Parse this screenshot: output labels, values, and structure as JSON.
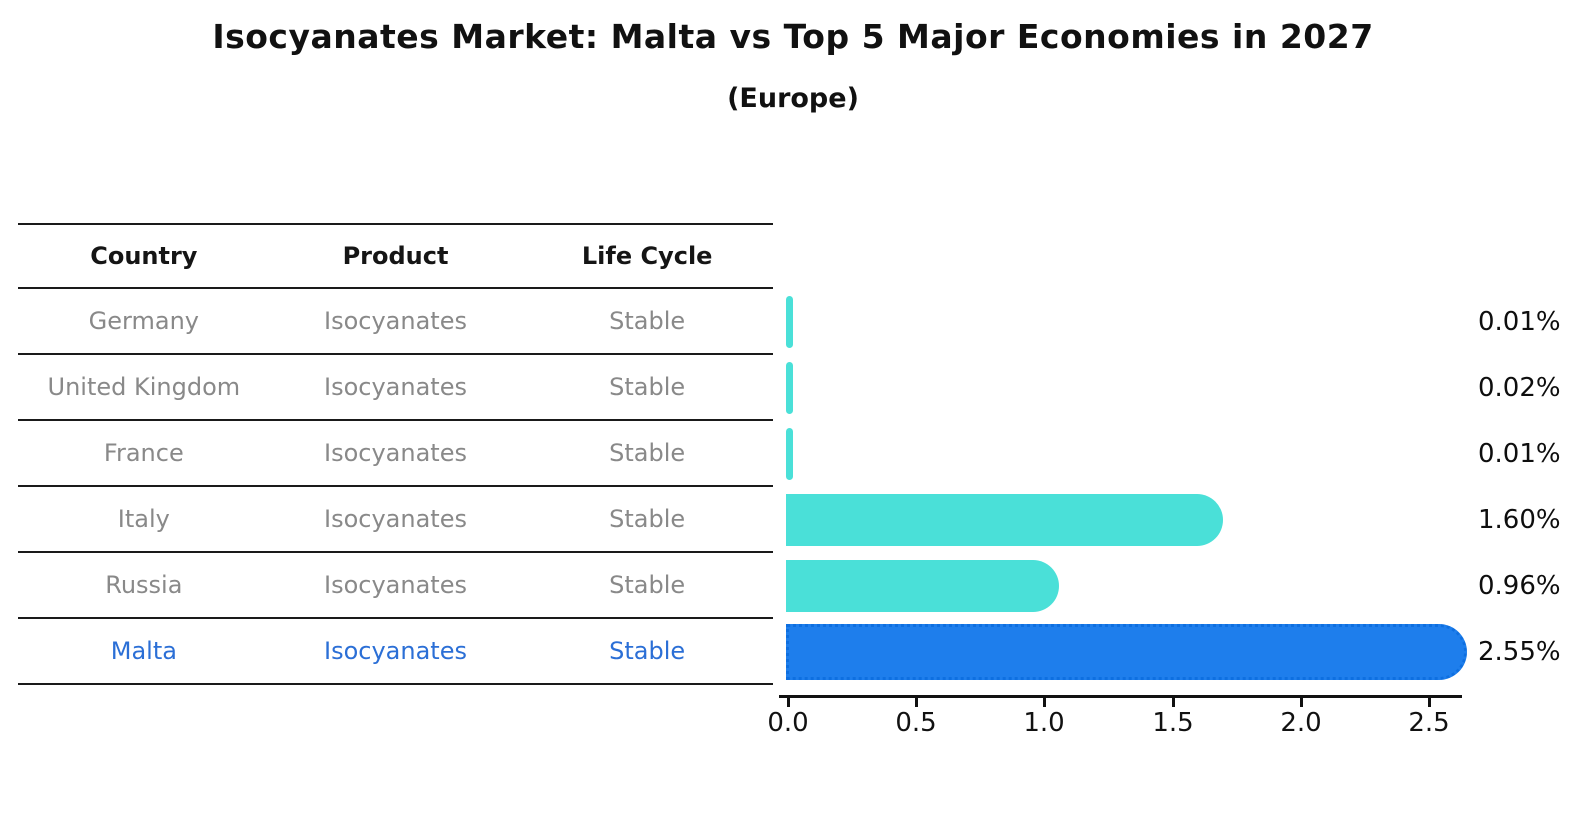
{
  "header": {
    "title": "Isocyanates Market: Malta vs Top 5 Major Economies in 2027",
    "subtitle": "(Europe)"
  },
  "table": {
    "columns": [
      "Country",
      "Product",
      "Life Cycle"
    ],
    "rows": [
      {
        "country": "Germany",
        "product": "Isocyanates",
        "life_cycle": "Stable"
      },
      {
        "country": "United Kingdom",
        "product": "Isocyanates",
        "life_cycle": "Stable"
      },
      {
        "country": "France",
        "product": "Isocyanates",
        "life_cycle": "Stable"
      },
      {
        "country": "Italy",
        "product": "Isocyanates",
        "life_cycle": "Stable"
      },
      {
        "country": "Russia",
        "product": "Isocyanates",
        "life_cycle": "Stable"
      },
      {
        "country": "Malta",
        "product": "Isocyanates",
        "life_cycle": "Stable"
      }
    ]
  },
  "chart_data": {
    "type": "bar",
    "orientation": "horizontal",
    "title": "Isocyanates Market: Malta vs Top 5 Major Economies in 2027",
    "subtitle": "(Europe)",
    "categories": [
      "Germany",
      "United Kingdom",
      "France",
      "Italy",
      "Russia",
      "Malta"
    ],
    "values": [
      0.01,
      0.02,
      0.01,
      1.6,
      0.96,
      2.55
    ],
    "labels": [
      "0.01%",
      "0.02%",
      "0.01%",
      "1.60%",
      "0.96%",
      "2.55%"
    ],
    "x_ticks": [
      "0.0",
      "0.5",
      "1.0",
      "1.5",
      "2.0",
      "2.5"
    ],
    "xlim": [
      0,
      2.64
    ],
    "grid": false,
    "legend": "none",
    "bar_color": "#4ae0d8",
    "highlight_color": "#1e7eec",
    "highlight_border": "#0e6fe0",
    "highlight_index": 5
  },
  "colors": {
    "accent-blue": "#2b6fd6",
    "text-gray": "#898989",
    "line-dark": "#1a1a1a",
    "text-dark": "#111111"
  }
}
